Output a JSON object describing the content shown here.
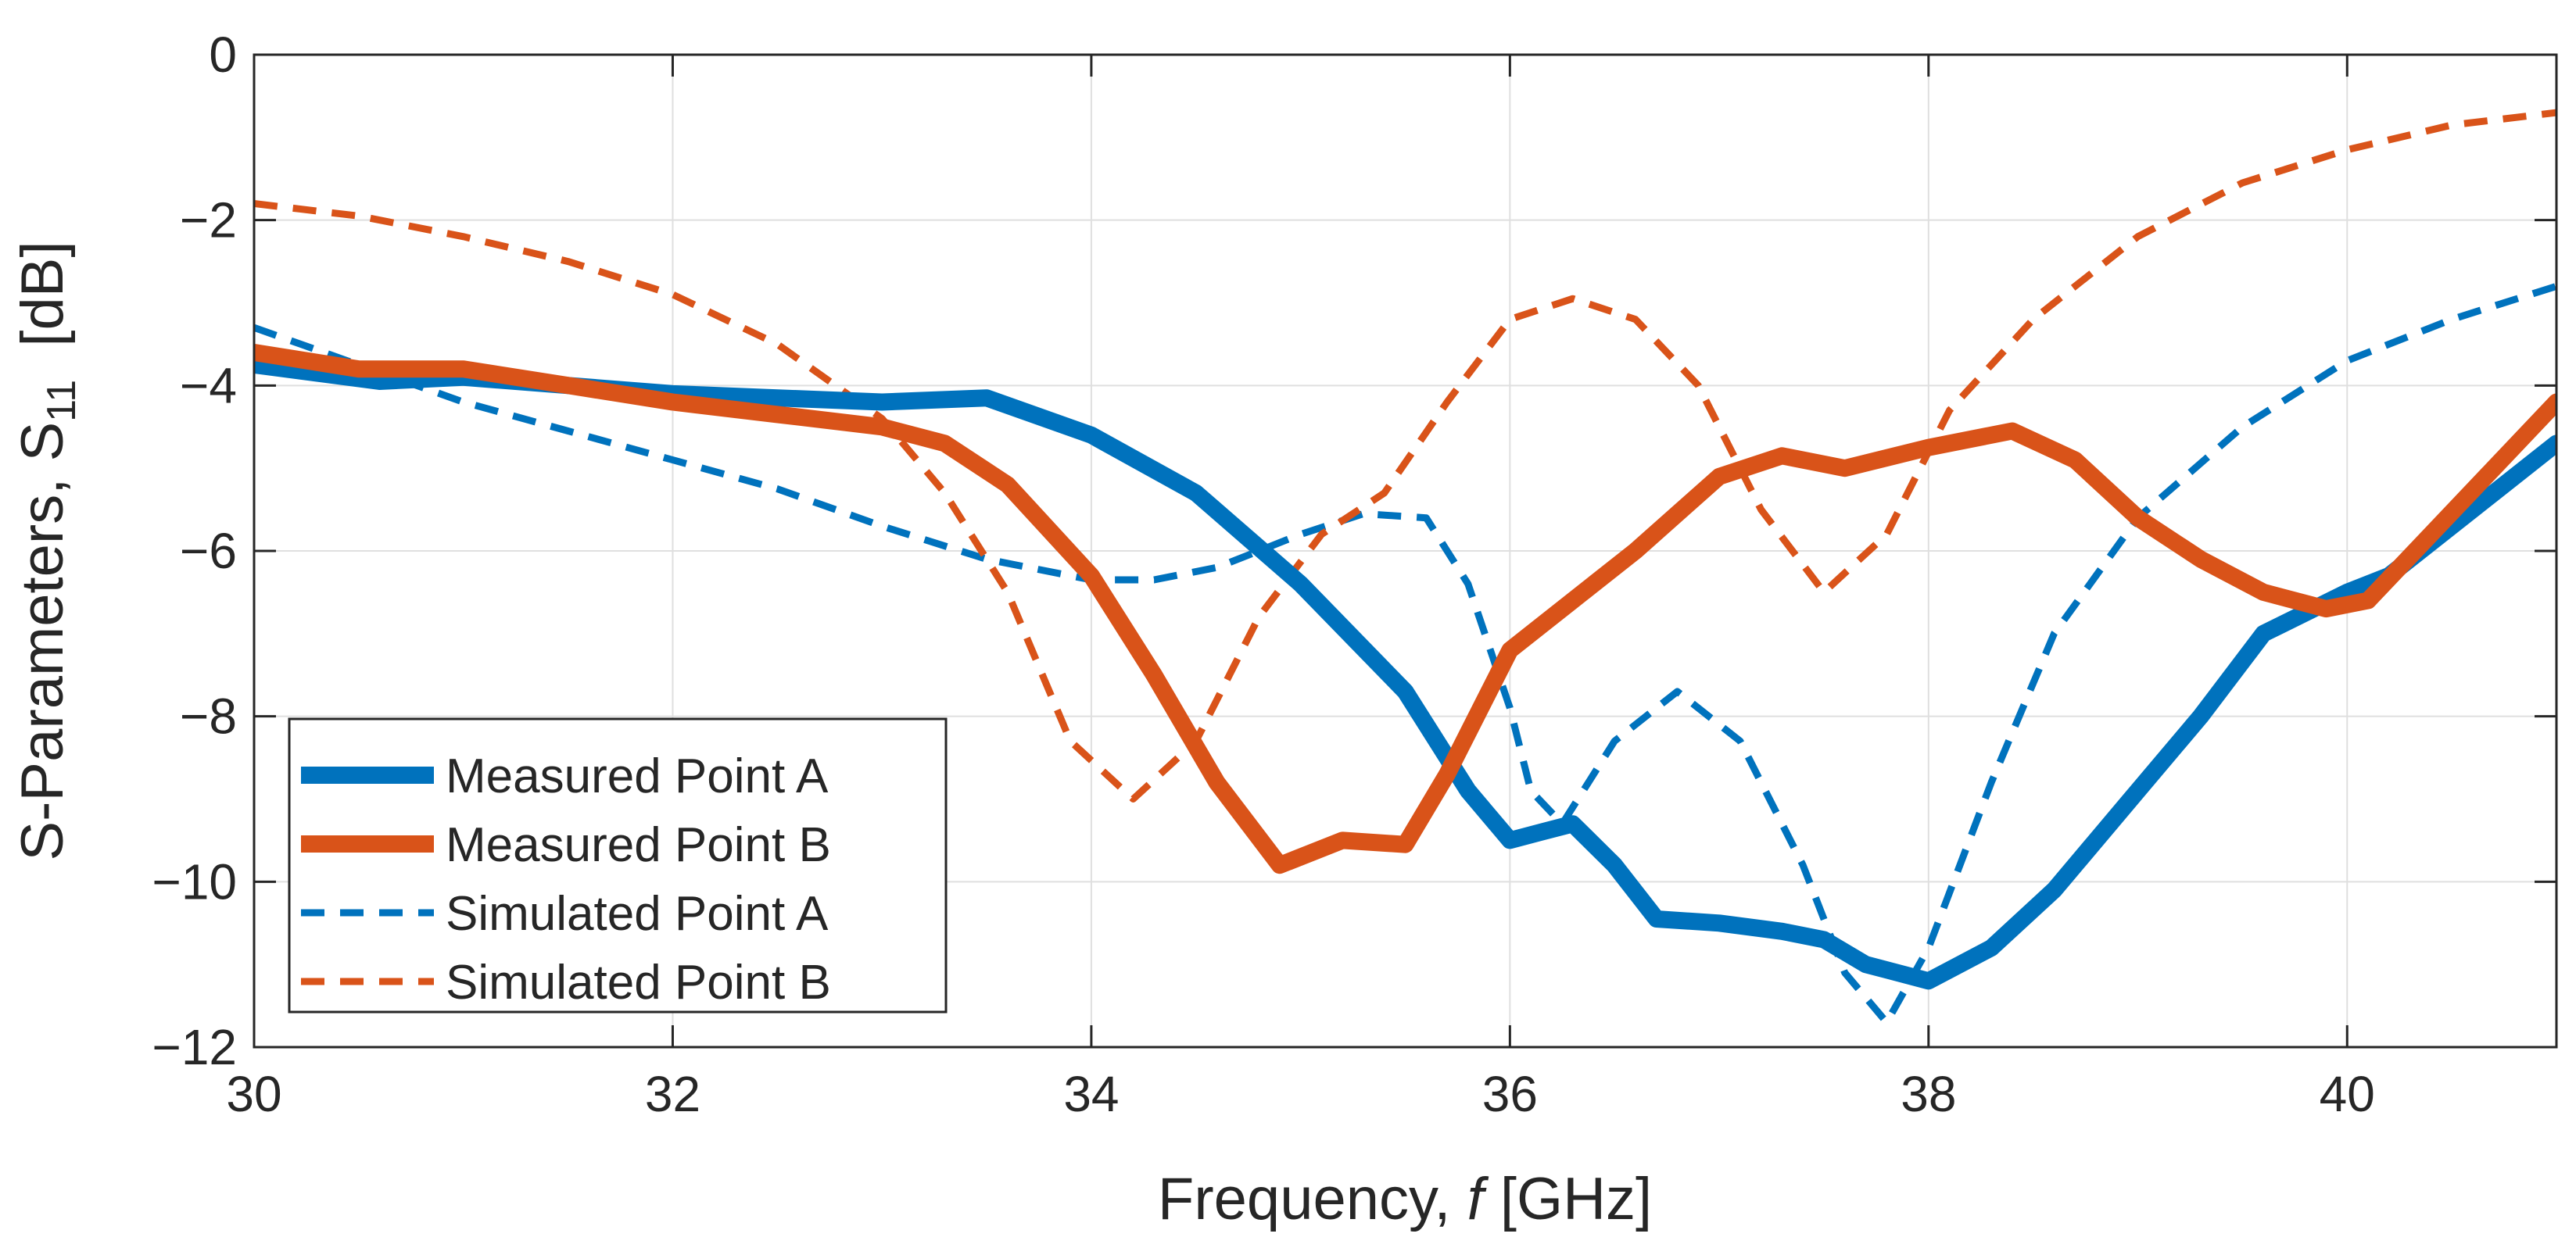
{
  "chart_data": {
    "type": "line",
    "xlabel_prefix": "Frequency, ",
    "xlabel_var": "f",
    "xlabel_suffix": " [GHz]",
    "ylabel_prefix": "S-Parameters, S",
    "ylabel_sub": "11",
    "ylabel_suffix": "  [dB]",
    "xlim": [
      30,
      41
    ],
    "ylim": [
      -12,
      0
    ],
    "xticks": [
      30,
      32,
      34,
      36,
      38,
      40
    ],
    "yticks": [
      0,
      -2,
      -4,
      -6,
      -8,
      -10,
      -12
    ],
    "xtick_labels": [
      "30",
      "32",
      "34",
      "36",
      "38",
      "40"
    ],
    "ytick_labels": [
      "0",
      "−2",
      "−4",
      "−6",
      "−8",
      "−10",
      "−12"
    ],
    "grid": true,
    "legend_position": "bottom-left",
    "series": [
      {
        "name": "Measured Point A",
        "color": "#0072BD",
        "style": "solid-thick",
        "x": [
          30,
          30.3,
          30.6,
          31,
          31.5,
          32,
          32.5,
          33,
          33.5,
          34,
          34.5,
          35,
          35.5,
          35.8,
          36,
          36.15,
          36.3,
          36.5,
          36.7,
          37,
          37.3,
          37.5,
          37.7,
          38,
          38.3,
          38.6,
          39,
          39.3,
          39.6,
          40,
          40.2,
          40.5,
          41
        ],
        "y": [
          -3.75,
          -3.85,
          -3.95,
          -3.9,
          -4.0,
          -4.1,
          -4.15,
          -4.2,
          -4.15,
          -4.6,
          -5.3,
          -6.4,
          -7.7,
          -8.9,
          -9.5,
          -9.4,
          -9.3,
          -9.8,
          -10.45,
          -10.5,
          -10.6,
          -10.7,
          -11.0,
          -11.2,
          -10.8,
          -10.1,
          -8.9,
          -8.0,
          -7.0,
          -6.5,
          -6.3,
          -5.7,
          -4.7
        ]
      },
      {
        "name": "Measured Point B",
        "color": "#D95319",
        "style": "solid-thick",
        "x": [
          30,
          30.5,
          31,
          31.5,
          32,
          32.5,
          33,
          33.3,
          33.6,
          34,
          34.3,
          34.6,
          34.9,
          35.2,
          35.5,
          35.7,
          36,
          36.3,
          36.6,
          37,
          37.3,
          37.6,
          38,
          38.4,
          38.7,
          39,
          39.3,
          39.6,
          39.9,
          40.1,
          40.4,
          40.7,
          41
        ],
        "y": [
          -3.6,
          -3.8,
          -3.8,
          -4.0,
          -4.2,
          -4.35,
          -4.5,
          -4.7,
          -5.2,
          -6.3,
          -7.5,
          -8.8,
          -9.8,
          -9.5,
          -9.55,
          -8.7,
          -7.2,
          -6.6,
          -6.0,
          -5.1,
          -4.85,
          -5.0,
          -4.75,
          -4.55,
          -4.9,
          -5.6,
          -6.1,
          -6.5,
          -6.7,
          -6.6,
          -5.8,
          -5.0,
          -4.2
        ]
      },
      {
        "name": "Simulated Point A",
        "color": "#0072BD",
        "style": "dashed",
        "x": [
          30,
          30.5,
          31,
          31.5,
          32,
          32.5,
          33,
          33.5,
          34,
          34.3,
          34.6,
          35,
          35.3,
          35.6,
          35.8,
          36,
          36.1,
          36.25,
          36.5,
          36.8,
          37.1,
          37.4,
          37.6,
          37.8,
          38,
          38.3,
          38.6,
          39,
          39.5,
          40,
          40.5,
          41
        ],
        "y": [
          -3.3,
          -3.75,
          -4.2,
          -4.55,
          -4.9,
          -5.25,
          -5.7,
          -6.1,
          -6.35,
          -6.35,
          -6.2,
          -5.8,
          -5.55,
          -5.6,
          -6.4,
          -7.9,
          -8.9,
          -9.3,
          -8.3,
          -7.7,
          -8.3,
          -9.8,
          -11.1,
          -11.7,
          -10.8,
          -8.8,
          -7.0,
          -5.6,
          -4.5,
          -3.7,
          -3.2,
          -2.8
        ]
      },
      {
        "name": "Simulated Point B",
        "color": "#D95319",
        "style": "dashed",
        "x": [
          30,
          30.5,
          31,
          31.5,
          32,
          32.5,
          33,
          33.3,
          33.6,
          33.9,
          34.2,
          34.5,
          34.8,
          35.1,
          35.4,
          35.7,
          36,
          36.3,
          36.6,
          36.9,
          37.2,
          37.5,
          37.8,
          38.1,
          38.5,
          39,
          39.5,
          40,
          40.5,
          41
        ],
        "y": [
          -1.8,
          -1.95,
          -2.2,
          -2.5,
          -2.9,
          -3.5,
          -4.4,
          -5.3,
          -6.5,
          -8.3,
          -9.0,
          -8.3,
          -6.8,
          -5.8,
          -5.3,
          -4.2,
          -3.2,
          -2.95,
          -3.2,
          -4.0,
          -5.5,
          -6.5,
          -5.8,
          -4.3,
          -3.2,
          -2.2,
          -1.55,
          -1.15,
          -0.85,
          -0.7
        ]
      }
    ]
  }
}
